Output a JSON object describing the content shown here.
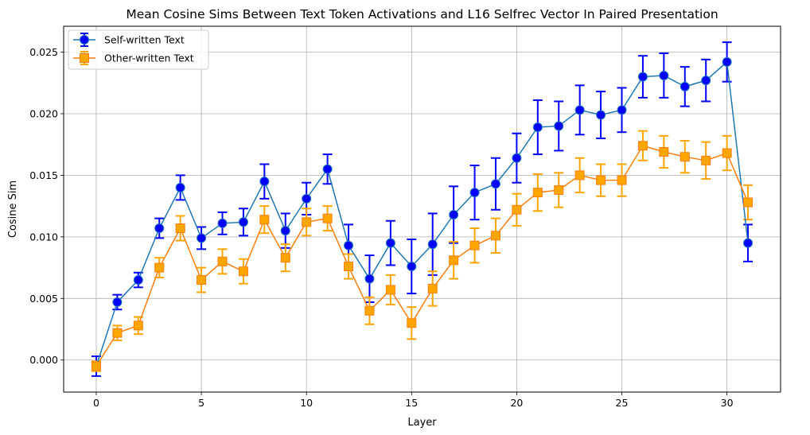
{
  "chart_data": {
    "type": "line",
    "title": "Mean Cosine Sims Between Text Token Activations and L16 Selfrec Vector In Paired Presentation",
    "xlabel": "Layer",
    "ylabel": "Cosine Sim",
    "xlim": [
      -1.55,
      32.55
    ],
    "ylim": [
      -0.0026,
      0.0271
    ],
    "xticks": [
      0,
      5,
      10,
      15,
      20,
      25,
      30
    ],
    "xtick_labels": [
      "0",
      "5",
      "10",
      "15",
      "20",
      "25",
      "30"
    ],
    "yticks": [
      0.0,
      0.005,
      0.01,
      0.015,
      0.02,
      0.025
    ],
    "ytick_labels": [
      "0.000",
      "0.005",
      "0.010",
      "0.015",
      "0.020",
      "0.025"
    ],
    "grid": true,
    "legend_position": "top-left",
    "x": [
      0,
      1,
      2,
      3,
      4,
      5,
      6,
      7,
      8,
      9,
      10,
      11,
      12,
      13,
      14,
      15,
      16,
      17,
      18,
      19,
      20,
      21,
      22,
      23,
      24,
      25,
      26,
      27,
      28,
      29,
      30,
      31
    ],
    "series": [
      {
        "name": "Self-written Text",
        "line_color": "#1f77b4",
        "marker_color": "#0000ff",
        "error_color": "#0000ff",
        "marker": "circle",
        "values": [
          -0.0005,
          0.0047,
          0.0065,
          0.0107,
          0.014,
          0.0099,
          0.0111,
          0.0112,
          0.0145,
          0.0105,
          0.0131,
          0.0155,
          0.0093,
          0.0066,
          0.0095,
          0.0076,
          0.0094,
          0.0118,
          0.0136,
          0.0143,
          0.0164,
          0.0189,
          0.019,
          0.0203,
          0.0199,
          0.0203,
          0.023,
          0.0231,
          0.0222,
          0.0227,
          0.0242,
          0.0095
        ],
        "errors": [
          0.0008,
          0.0006,
          0.0006,
          0.0008,
          0.001,
          0.0009,
          0.0009,
          0.0011,
          0.0014,
          0.0014,
          0.0013,
          0.0012,
          0.0017,
          0.0019,
          0.0018,
          0.0022,
          0.0025,
          0.0023,
          0.0022,
          0.0021,
          0.002,
          0.0022,
          0.002,
          0.002,
          0.0019,
          0.0018,
          0.0017,
          0.0018,
          0.0016,
          0.0017,
          0.0016,
          0.0015
        ]
      },
      {
        "name": "Other-written Text",
        "line_color": "#ff7f0e",
        "marker_color": "#ffa500",
        "error_color": "#ffa500",
        "marker": "square",
        "values": [
          -0.0005,
          0.0022,
          0.0028,
          0.0075,
          0.0107,
          0.0065,
          0.008,
          0.0072,
          0.0114,
          0.0083,
          0.0112,
          0.0115,
          0.0076,
          0.004,
          0.0057,
          0.003,
          0.0058,
          0.0081,
          0.0093,
          0.0101,
          0.0122,
          0.0136,
          0.0138,
          0.015,
          0.0146,
          0.0146,
          0.0174,
          0.0169,
          0.0165,
          0.0162,
          0.0168,
          0.0128
        ],
        "errors": [
          0.0004,
          0.0006,
          0.0007,
          0.0008,
          0.001,
          0.001,
          0.001,
          0.001,
          0.0011,
          0.0011,
          0.0011,
          0.001,
          0.001,
          0.0011,
          0.0012,
          0.0013,
          0.0014,
          0.0015,
          0.0014,
          0.0014,
          0.0013,
          0.0015,
          0.0014,
          0.0014,
          0.0013,
          0.0013,
          0.0012,
          0.0013,
          0.0013,
          0.0015,
          0.0014,
          0.0014
        ]
      }
    ]
  }
}
